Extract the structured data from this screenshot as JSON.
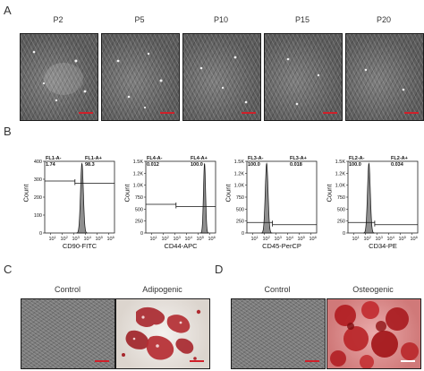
{
  "panels": {
    "A": {
      "letter": "A",
      "images": [
        {
          "label": "P2"
        },
        {
          "label": "P5"
        },
        {
          "label": "P10"
        },
        {
          "label": "P15"
        },
        {
          "label": "P20"
        }
      ],
      "scale_bar_color": "#d0202a"
    },
    "B": {
      "letter": "B",
      "histograms": [
        {
          "left_gate": "FL1-A-",
          "left_value": "1.74",
          "right_gate": "FL1-A+",
          "right_value": "98.3",
          "xlabel": "CD90-FITC",
          "ylabel": "Count",
          "y_ticks": [
            "0",
            "100",
            "200",
            "300",
            "400"
          ],
          "y_max": 400,
          "peak_x_log": 3.7,
          "peak_width_log": 0.12,
          "gate_line_y": 290,
          "gate_split_log": 3.1
        },
        {
          "left_gate": "FL4-A-",
          "left_value": "0.012",
          "right_gate": "FL4-A+",
          "right_value": "100.0",
          "xlabel": "CD44-APC",
          "ylabel": "Count",
          "y_ticks": [
            "0",
            "250",
            "500",
            "750",
            "1.0K",
            "1.2K",
            "1.5K"
          ],
          "y_max": 1500,
          "peak_x_log": 5.55,
          "peak_width_log": 0.09,
          "gate_line_y": 600,
          "gate_split_log": 3.1
        },
        {
          "left_gate": "FL3-A-",
          "left_value": "100.0",
          "right_gate": "FL3-A+",
          "right_value": "0.018",
          "xlabel": "CD45-PerCP",
          "ylabel": "Count",
          "y_ticks": [
            "0",
            "250",
            "500",
            "750",
            "1.0K",
            "1.2K",
            "1.5K"
          ],
          "y_max": 1500,
          "peak_x_log": 2.2,
          "peak_width_log": 0.12,
          "gate_line_y": 220,
          "gate_split_log": 2.7
        },
        {
          "left_gate": "FL2-A-",
          "left_value": "100.0",
          "right_gate": "FL2-A+",
          "right_value": "0.034",
          "xlabel": "CD34-PE",
          "ylabel": "Count",
          "y_ticks": [
            "0",
            "250",
            "500",
            "750",
            "1.0K",
            "1.2K",
            "1.5K"
          ],
          "y_max": 1500,
          "peak_x_log": 2.3,
          "peak_width_log": 0.12,
          "gate_line_y": 220,
          "gate_split_log": 2.8
        }
      ],
      "x_tick_powers": [
        "1",
        "2",
        "3",
        "4",
        "5",
        "6"
      ],
      "histogram_fill": "#8f8f8f"
    },
    "C": {
      "letter": "C",
      "images": [
        {
          "label": "Control"
        },
        {
          "label": "Adipogenic"
        }
      ]
    },
    "D": {
      "letter": "D",
      "images": [
        {
          "label": "Control"
        },
        {
          "label": "Osteogenic"
        }
      ]
    }
  }
}
